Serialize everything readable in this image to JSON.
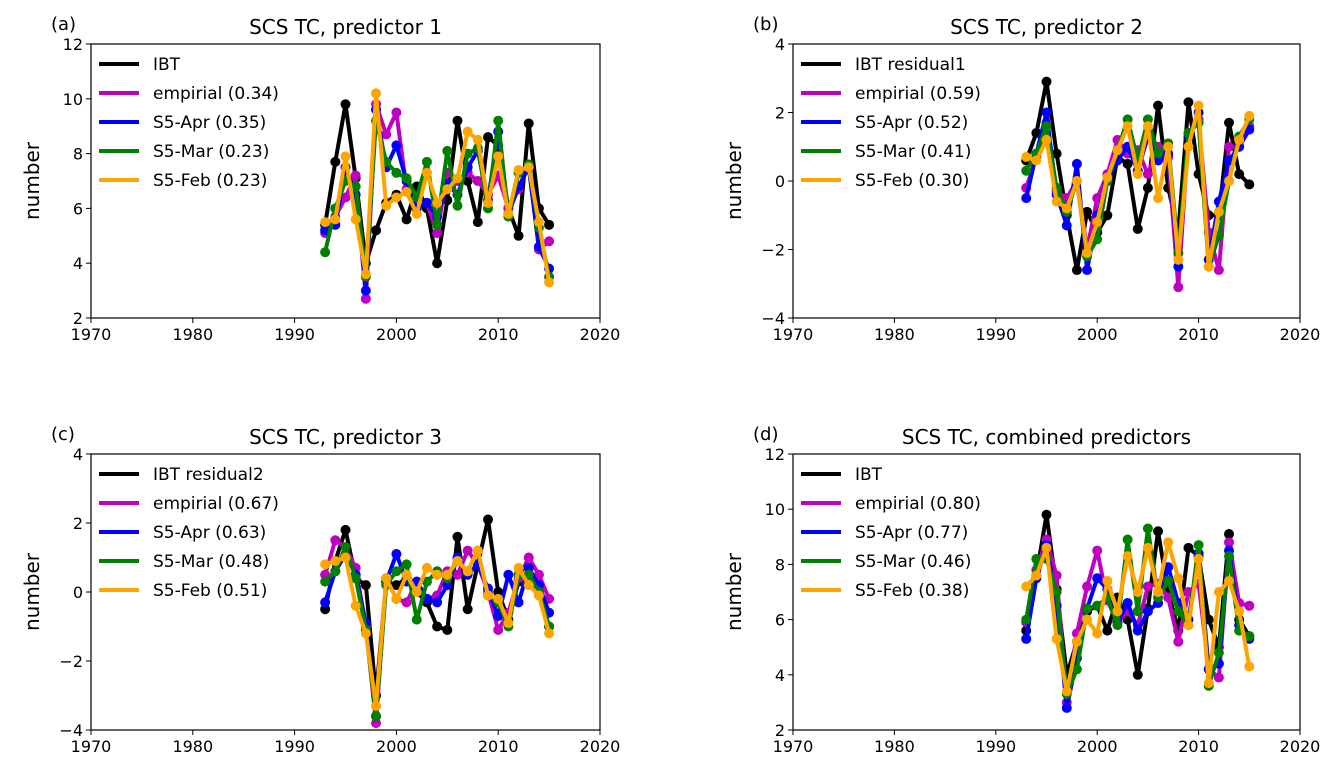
{
  "figure": {
    "panel_count": 4
  },
  "chart_data": [
    {
      "type": "line",
      "panel_label": "(a)",
      "title": "SCS TC, predictor 1",
      "xlabel": "",
      "ylabel": "number",
      "xlim": [
        1970,
        2020
      ],
      "ylim": [
        2,
        12
      ],
      "xticks": [
        1970,
        1980,
        1990,
        2000,
        2010,
        2020
      ],
      "yticks": [
        2,
        4,
        6,
        8,
        10,
        12
      ],
      "legend_position": "upper-left",
      "x": [
        1993,
        1994,
        1995,
        1996,
        1997,
        1998,
        1999,
        2000,
        2001,
        2002,
        2003,
        2004,
        2005,
        2006,
        2007,
        2008,
        2009,
        2010,
        2011,
        2012,
        2013,
        2014,
        2015
      ],
      "series": [
        {
          "name": "IBT",
          "color": "#000000",
          "values": [
            5.4,
            7.7,
            9.8,
            7.1,
            4.0,
            5.2,
            6.2,
            6.5,
            5.6,
            6.8,
            6.0,
            4.0,
            6.3,
            9.2,
            7.0,
            5.5,
            8.6,
            8.3,
            6.0,
            5.0,
            9.1,
            6.0,
            5.4
          ]
        },
        {
          "name": "empirial (0.34)",
          "color": "#c000c0",
          "values": [
            5.1,
            5.7,
            6.4,
            7.2,
            2.7,
            9.8,
            8.7,
            9.5,
            6.7,
            6.0,
            6.2,
            5.1,
            7.3,
            7.0,
            7.3,
            7.0,
            6.5,
            7.2,
            6.0,
            6.7,
            7.6,
            4.5,
            4.8
          ]
        },
        {
          "name": "S5-Apr (0.35)",
          "color": "#0000ff",
          "values": [
            5.2,
            5.4,
            7.5,
            6.5,
            3.0,
            9.6,
            7.5,
            8.3,
            7.0,
            6.0,
            6.2,
            5.7,
            6.9,
            6.5,
            7.5,
            8.1,
            6.3,
            8.8,
            5.8,
            6.8,
            7.5,
            4.6,
            3.8
          ]
        },
        {
          "name": "S5-Mar (0.23)",
          "color": "#008000",
          "values": [
            4.4,
            6.0,
            7.0,
            6.8,
            3.5,
            9.2,
            7.7,
            7.3,
            7.1,
            6.4,
            7.7,
            5.4,
            8.1,
            6.1,
            8.0,
            8.2,
            6.0,
            9.2,
            5.7,
            7.3,
            7.6,
            5.3,
            3.5
          ]
        },
        {
          "name": "S5-Feb (0.23)",
          "color": "#ffa500",
          "values": [
            5.5,
            5.6,
            7.9,
            5.6,
            3.6,
            10.2,
            6.1,
            6.4,
            6.6,
            5.8,
            7.3,
            6.2,
            6.7,
            7.1,
            8.8,
            8.5,
            6.2,
            7.9,
            5.8,
            7.4,
            7.5,
            5.5,
            3.3
          ]
        }
      ]
    },
    {
      "type": "line",
      "panel_label": "(b)",
      "title": "SCS TC, predictor 2",
      "xlabel": "",
      "ylabel": "number",
      "xlim": [
        1970,
        2020
      ],
      "ylim": [
        -4,
        4
      ],
      "xticks": [
        1970,
        1980,
        1990,
        2000,
        2010,
        2020
      ],
      "yticks": [
        -4,
        -2,
        0,
        2,
        4
      ],
      "legend_position": "upper-left",
      "x": [
        1993,
        1994,
        1995,
        1996,
        1997,
        1998,
        1999,
        2000,
        2001,
        2002,
        2003,
        2004,
        2005,
        2006,
        2007,
        2008,
        2009,
        2010,
        2011,
        2012,
        2013,
        2014,
        2015
      ],
      "series": [
        {
          "name": "IBT residual1",
          "color": "#000000",
          "values": [
            0.6,
            1.4,
            2.9,
            0.8,
            -1.0,
            -2.6,
            -0.9,
            -1.5,
            -1.0,
            0.7,
            0.5,
            -1.4,
            -0.2,
            2.2,
            -0.2,
            -1.5,
            2.3,
            0.2,
            -1.0,
            -1.0,
            1.7,
            0.2,
            -0.1
          ]
        },
        {
          "name": "empirial (0.59)",
          "color": "#c000c0",
          "values": [
            -0.2,
            0.7,
            1.7,
            -0.3,
            -0.5,
            0.0,
            -2.0,
            -0.5,
            0.2,
            1.2,
            0.8,
            0.9,
            0.2,
            1.0,
            0.7,
            -3.1,
            1.4,
            1.8,
            -1.5,
            -2.6,
            1.0,
            1.0,
            1.6
          ]
        },
        {
          "name": "S5-Apr (0.52)",
          "color": "#0000ff",
          "values": [
            -0.5,
            0.8,
            2.0,
            -0.4,
            -1.3,
            0.5,
            -2.6,
            -1.0,
            0.0,
            0.6,
            1.0,
            0.3,
            1.3,
            0.6,
            0.8,
            -2.5,
            1.3,
            2.0,
            -2.3,
            -0.6,
            0.6,
            1.0,
            1.5
          ]
        },
        {
          "name": "S5-Mar (0.41)",
          "color": "#008000",
          "values": [
            0.3,
            0.8,
            1.6,
            -0.2,
            -0.9,
            0.0,
            -2.2,
            -1.7,
            0.0,
            0.9,
            1.8,
            0.6,
            1.8,
            0.8,
            1.1,
            -2.1,
            1.4,
            1.7,
            -2.5,
            -1.6,
            0.0,
            1.3,
            1.8
          ]
        },
        {
          "name": "S5-Feb (0.30)",
          "color": "#ffa500",
          "values": [
            0.7,
            0.6,
            1.2,
            -0.6,
            -0.8,
            0.0,
            -2.1,
            -1.2,
            0.1,
            0.9,
            1.6,
            0.2,
            1.6,
            -0.5,
            1.0,
            -2.3,
            1.0,
            2.2,
            -2.5,
            -0.9,
            0.0,
            1.2,
            1.9
          ]
        }
      ]
    },
    {
      "type": "line",
      "panel_label": "(c)",
      "title": "SCS TC, predictor 3",
      "xlabel": "",
      "ylabel": "number",
      "xlim": [
        1970,
        2020
      ],
      "ylim": [
        -4,
        4
      ],
      "xticks": [
        1970,
        1980,
        1990,
        2000,
        2010,
        2020
      ],
      "yticks": [
        -4,
        -2,
        0,
        2,
        4
      ],
      "legend_position": "upper-left",
      "x": [
        1993,
        1994,
        1995,
        1996,
        1997,
        1998,
        1999,
        2000,
        2001,
        2002,
        2003,
        2004,
        2005,
        2006,
        2007,
        2008,
        2009,
        2010,
        2011,
        2012,
        2013,
        2014,
        2015
      ],
      "series": [
        {
          "name": "IBT residual2",
          "color": "#000000",
          "values": [
            -0.5,
            0.9,
            1.8,
            0.4,
            0.2,
            -3.0,
            0.3,
            0.2,
            0.4,
            0.0,
            -0.3,
            -1.0,
            -1.1,
            1.6,
            -0.5,
            0.8,
            2.1,
            0.0,
            -0.8,
            0.3,
            0.5,
            0.0,
            -1.0
          ]
        },
        {
          "name": "empirial (0.67)",
          "color": "#c000c0",
          "values": [
            0.5,
            1.5,
            1.3,
            0.7,
            -1.0,
            -3.8,
            0.4,
            -0.2,
            -0.3,
            0.3,
            -0.2,
            -0.1,
            0.6,
            0.5,
            1.2,
            0.8,
            0.0,
            -1.1,
            -0.6,
            0.4,
            1.0,
            0.5,
            -0.2
          ]
        },
        {
          "name": "S5-Apr (0.63)",
          "color": "#0000ff",
          "values": [
            -0.3,
            0.6,
            1.1,
            0.5,
            -0.9,
            -3.6,
            0.3,
            1.1,
            0.3,
            0.3,
            -0.2,
            -0.3,
            0.2,
            1.0,
            0.5,
            0.8,
            0.1,
            -0.7,
            0.5,
            -0.3,
            0.7,
            0.2,
            -0.6
          ]
        },
        {
          "name": "S5-Mar (0.48)",
          "color": "#008000",
          "values": [
            0.3,
            0.6,
            1.3,
            0.4,
            -1.1,
            -3.6,
            0.2,
            0.6,
            0.8,
            -0.8,
            0.3,
            0.6,
            0.4,
            0.9,
            0.6,
            1.2,
            -0.1,
            -0.3,
            -1.0,
            0.5,
            0.5,
            0.0,
            -1.0
          ]
        },
        {
          "name": "S5-Feb (0.51)",
          "color": "#ffa500",
          "values": [
            0.8,
            0.9,
            1.0,
            -0.4,
            -1.2,
            -3.3,
            0.4,
            -0.2,
            0.5,
            0.0,
            0.7,
            0.5,
            0.5,
            0.9,
            0.6,
            1.2,
            -0.1,
            -0.2,
            -0.9,
            0.7,
            0.2,
            -0.1,
            -1.2
          ]
        }
      ]
    },
    {
      "type": "line",
      "panel_label": "(d)",
      "title": "SCS TC, combined predictors",
      "xlabel": "",
      "ylabel": "number",
      "xlim": [
        1970,
        2020
      ],
      "ylim": [
        2,
        12
      ],
      "xticks": [
        1970,
        1980,
        1990,
        2000,
        2010,
        2020
      ],
      "yticks": [
        2,
        4,
        6,
        8,
        10,
        12
      ],
      "legend_position": "upper-left",
      "x": [
        1993,
        1994,
        1995,
        1996,
        1997,
        1998,
        1999,
        2000,
        2001,
        2002,
        2003,
        2004,
        2005,
        2006,
        2007,
        2008,
        2009,
        2010,
        2011,
        2012,
        2013,
        2014,
        2015
      ],
      "series": [
        {
          "name": "IBT",
          "color": "#000000",
          "values": [
            5.6,
            7.6,
            9.8,
            7.1,
            4.0,
            5.2,
            6.3,
            6.5,
            5.6,
            6.8,
            6.0,
            4.0,
            6.4,
            9.2,
            7.0,
            5.6,
            8.6,
            8.3,
            6.0,
            5.0,
            9.1,
            6.0,
            5.4
          ]
        },
        {
          "name": "empirial (0.80)",
          "color": "#c000c0",
          "values": [
            5.9,
            7.8,
            8.9,
            7.6,
            3.0,
            5.5,
            7.2,
            8.5,
            6.7,
            5.9,
            6.3,
            5.8,
            7.2,
            7.3,
            6.8,
            5.2,
            7.0,
            7.3,
            4.2,
            3.9,
            8.8,
            6.6,
            6.5
          ]
        },
        {
          "name": "S5-Apr (0.77)",
          "color": "#0000ff",
          "values": [
            5.3,
            7.5,
            8.7,
            6.5,
            2.8,
            4.6,
            6.4,
            7.5,
            7.1,
            5.9,
            6.6,
            5.6,
            6.3,
            6.6,
            7.9,
            6.6,
            6.0,
            8.4,
            4.2,
            4.4,
            8.5,
            5.8,
            5.3
          ]
        },
        {
          "name": "S5-Mar (0.46)",
          "color": "#008000",
          "values": [
            6.0,
            8.2,
            8.2,
            7.0,
            3.3,
            4.2,
            6.4,
            6.5,
            6.8,
            5.8,
            8.9,
            6.3,
            9.3,
            6.8,
            7.4,
            6.3,
            5.8,
            8.7,
            3.6,
            4.8,
            8.3,
            5.6,
            5.4
          ]
        },
        {
          "name": "S5-Feb (0.38)",
          "color": "#ffa500",
          "values": [
            7.2,
            7.6,
            8.6,
            5.3,
            3.4,
            5.2,
            6.0,
            5.5,
            7.4,
            6.3,
            8.3,
            7.0,
            8.6,
            7.0,
            8.8,
            7.5,
            5.8,
            8.2,
            3.7,
            7.0,
            7.4,
            6.3,
            4.3
          ]
        }
      ]
    }
  ]
}
